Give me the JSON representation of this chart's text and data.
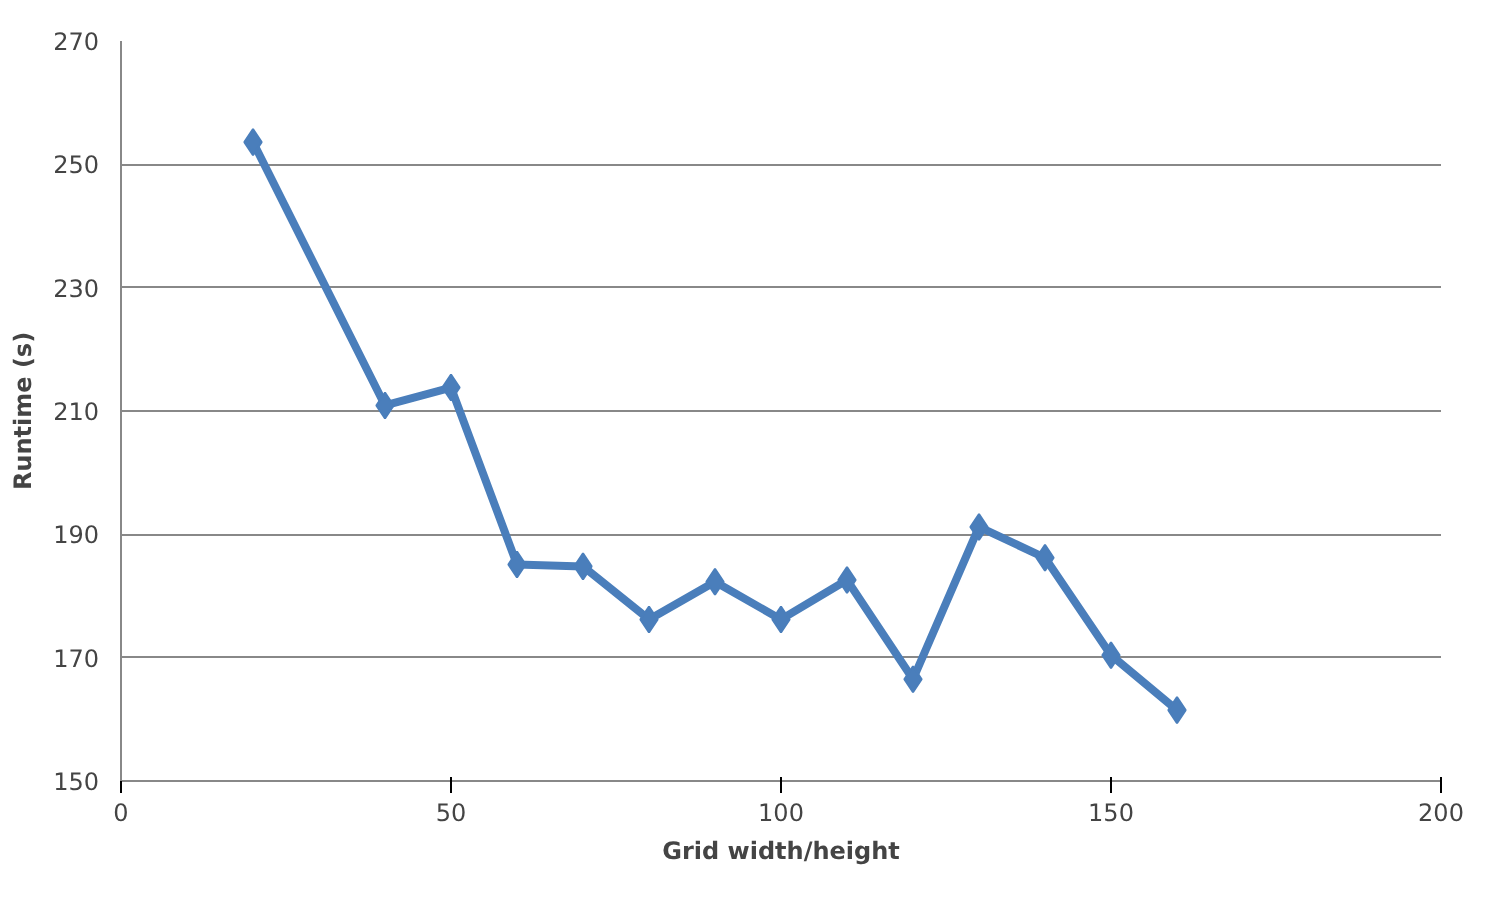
{
  "chart_data": {
    "type": "line",
    "xlabel": "Grid width/height",
    "ylabel": "Runtime (s)",
    "x": [
      20,
      40,
      50,
      60,
      70,
      80,
      90,
      100,
      110,
      120,
      130,
      140,
      150,
      160
    ],
    "series": [
      {
        "color": "#4a7ebb",
        "values": [
          253.6,
          210.9,
          213.8,
          185.1,
          184.8,
          176.2,
          182.3,
          176.2,
          182.6,
          166.5,
          191.2,
          186.2,
          170.4,
          161.5
        ]
      }
    ],
    "xlim": [
      0,
      200
    ],
    "xticks": [
      0,
      50,
      100,
      150,
      200
    ],
    "ylim": [
      150,
      270
    ],
    "yticks": [
      150,
      170,
      190,
      210,
      230,
      250,
      270
    ],
    "grid": "y",
    "marker": "diamond",
    "line_style": "solid"
  }
}
